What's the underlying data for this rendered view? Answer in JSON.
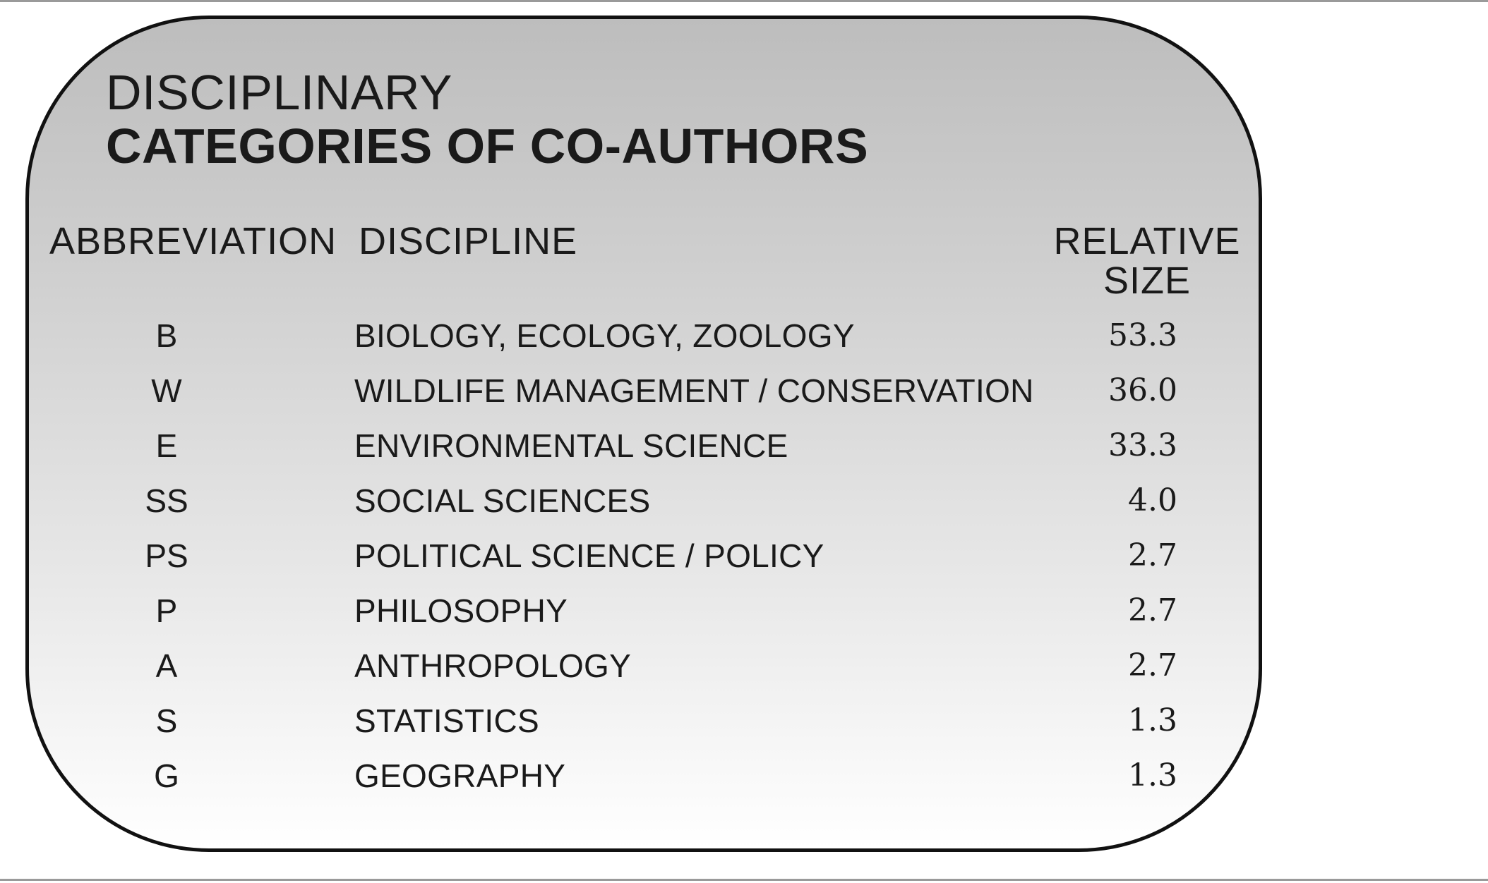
{
  "title": {
    "line1": "DISCIPLINARY",
    "line2": "CATEGORIES OF CO-AUTHORS"
  },
  "headers": {
    "abbreviation": "ABBREVIATION",
    "discipline": "DISCIPLINE",
    "size_line1": "RELATIVE",
    "size_line2": "SIZE"
  },
  "rows": [
    {
      "abbr": "B",
      "discipline": "BIOLOGY, ECOLOGY, ZOOLOGY",
      "size": "53.3"
    },
    {
      "abbr": "W",
      "discipline": "WILDLIFE MANAGEMENT / CONSERVATION",
      "size": "36.0"
    },
    {
      "abbr": "E",
      "discipline": "ENVIRONMENTAL SCIENCE",
      "size": "33.3"
    },
    {
      "abbr": "SS",
      "discipline": "SOCIAL SCIENCES",
      "size": "4.0"
    },
    {
      "abbr": "PS",
      "discipline": "POLITICAL SCIENCE / POLICY",
      "size": "2.7"
    },
    {
      "abbr": "P",
      "discipline": "PHILOSOPHY",
      "size": "2.7"
    },
    {
      "abbr": "A",
      "discipline": "ANTHROPOLOGY",
      "size": "2.7"
    },
    {
      "abbr": "S",
      "discipline": "STATISTICS",
      "size": "1.3"
    },
    {
      "abbr": "G",
      "discipline": "GEOGRAPHY",
      "size": "1.3"
    }
  ]
}
